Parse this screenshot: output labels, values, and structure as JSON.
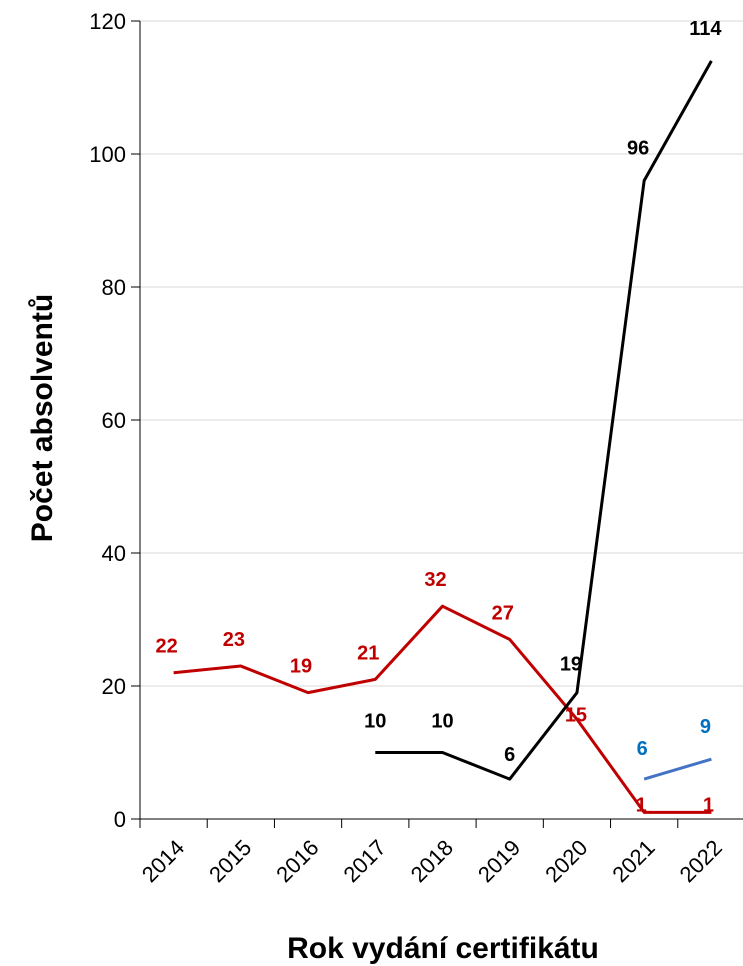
{
  "chart_data": {
    "type": "line",
    "title": "",
    "xlabel": "Rok vydání certifikátu",
    "ylabel": "Počet absolventů",
    "ylim": [
      0,
      120
    ],
    "yticks": [
      0,
      20,
      40,
      60,
      80,
      100,
      120
    ],
    "x": [
      "2014",
      "2015",
      "2016",
      "2017",
      "2018",
      "2019",
      "2020",
      "2021",
      "2022"
    ],
    "grid": "horizontal",
    "series": [
      {
        "color": "#c00000",
        "values": [
          22,
          23,
          19,
          21,
          32,
          27,
          15,
          1,
          1
        ],
        "labels": [
          "22",
          "23",
          "19",
          "21",
          "32",
          "27",
          "15",
          "1",
          "1"
        ]
      },
      {
        "color": "#000000",
        "values": [
          null,
          null,
          null,
          10,
          10,
          6,
          19,
          96,
          114
        ],
        "labels": [
          null,
          null,
          null,
          "10",
          "10",
          "6",
          "19",
          "96",
          "114"
        ]
      },
      {
        "color": "#4472c4",
        "label_color": "#0070c0",
        "values": [
          null,
          null,
          null,
          null,
          null,
          null,
          null,
          6,
          9
        ],
        "labels": [
          null,
          null,
          null,
          null,
          null,
          null,
          null,
          "6",
          "9"
        ]
      }
    ]
  }
}
